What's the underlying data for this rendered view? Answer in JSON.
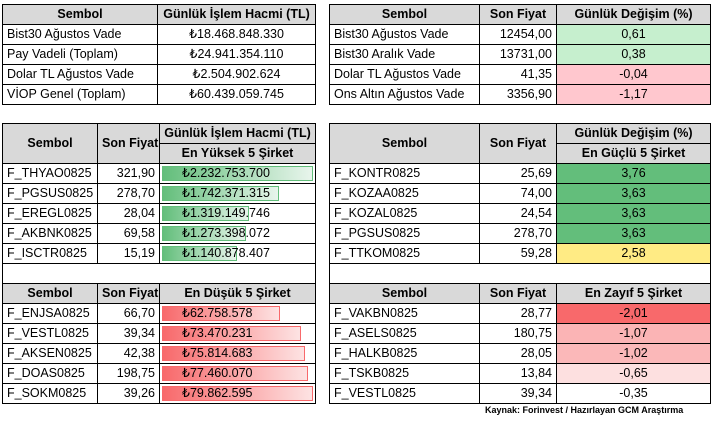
{
  "table1": {
    "headers": [
      "Sembol",
      "Günlük İşlem Hacmi (TL)"
    ],
    "rows": [
      [
        "Bist30 Ağustos Vade",
        "₺18.468.848.330"
      ],
      [
        "Pay Vadeli (Toplam)",
        "₺24.941.354.110"
      ],
      [
        "Dolar TL Ağustos Vade",
        "₺2.504.902.624"
      ],
      [
        "VİOP Genel (Toplam)",
        "₺60.439.059.745"
      ]
    ]
  },
  "table2": {
    "headers": [
      "Sembol",
      "Son Fiyat",
      "Günlük Değişim (%)"
    ],
    "rows": [
      [
        "Bist30 Ağustos Vade",
        "12454,00",
        "0,61"
      ],
      [
        "Bist30 Aralık Vade",
        "13731,00",
        "0,38"
      ],
      [
        "Dolar TL Ağustos Vade",
        "41,35",
        "-0,04"
      ],
      [
        "Ons Altın Ağustos Vade",
        "3356,90",
        "-1,17"
      ]
    ],
    "change_colors": [
      "#c6efce",
      "#c6efce",
      "#ffc7ce",
      "#ffc7ce"
    ]
  },
  "table3": {
    "headers": [
      "Sembol",
      "Son Fiyat",
      "Günlük İşlem Hacmi (TL)"
    ],
    "subheader": "En Yüksek 5 Şirket",
    "rows": [
      [
        "F_THYAO0825",
        "321,90",
        "₺2.232.753.700"
      ],
      [
        "F_PGSUS0825",
        "278,70",
        "₺1.742.371.315"
      ],
      [
        "F_EREGL0825",
        "28,04",
        "₺1.319.149.746"
      ],
      [
        "F_AKBNK0825",
        "69,58",
        "₺1.273.398.072"
      ],
      [
        "F_ISCTR0825",
        "15,19",
        "₺1.140.878.407"
      ]
    ],
    "bar_fraction": [
      1.0,
      0.78,
      0.59,
      0.57,
      0.51
    ]
  },
  "table4": {
    "headers": [
      "Sembol",
      "Son Fiyat",
      "Günlük Değişim (%)"
    ],
    "subheader": "En Güçlü 5 Şirket",
    "rows": [
      [
        "F_KONTR0825",
        "25,69",
        "3,76"
      ],
      [
        "F_KOZAA0825",
        "74,00",
        "3,63"
      ],
      [
        "F_KOZAL0825",
        "24,54",
        "3,63"
      ],
      [
        "F_PGSUS0825",
        "278,70",
        "3,63"
      ],
      [
        "F_TTKOM0825",
        "59,28",
        "2,58"
      ]
    ],
    "change_colors": [
      "#63be7b",
      "#63be7b",
      "#63be7b",
      "#63be7b",
      "#ffeb84"
    ]
  },
  "table5": {
    "headers": [
      "Sembol",
      "Son Fiyat",
      "En Düşük 5 Şirket"
    ],
    "rows": [
      [
        "F_ENJSA0825",
        "66,70",
        "₺62.758.578"
      ],
      [
        "F_VESTL0825",
        "39,34",
        "₺73.470.231"
      ],
      [
        "F_AKSEN0825",
        "42,38",
        "₺75.814.683"
      ],
      [
        "F_DOAS0825",
        "198,75",
        "₺77.460.070"
      ],
      [
        "F_SOKM0825",
        "39,26",
        "₺79.862.595"
      ]
    ],
    "bar_fraction": [
      0.79,
      0.92,
      0.95,
      0.97,
      1.0
    ]
  },
  "table6": {
    "headers": [
      "Sembol",
      "Son Fiyat",
      "En Zayıf 5 Şirket"
    ],
    "rows": [
      [
        "F_VAKBN0825",
        "28,77",
        "-2,01"
      ],
      [
        "F_ASELS0825",
        "180,75",
        "-1,07"
      ],
      [
        "F_HALKB0825",
        "28,05",
        "-1,02"
      ],
      [
        "F_TSKB0825",
        "13,84",
        "-0,65"
      ],
      [
        "F_VESTL0825",
        "39,34",
        "-0,35"
      ]
    ],
    "change_colors": [
      "#f8696b",
      "#fbb4b5",
      "#fbb8b9",
      "#fde0e0",
      "#ffffff"
    ]
  },
  "source": "Kaynak: Forinvest / Hazırlayan GCM Araştırma"
}
